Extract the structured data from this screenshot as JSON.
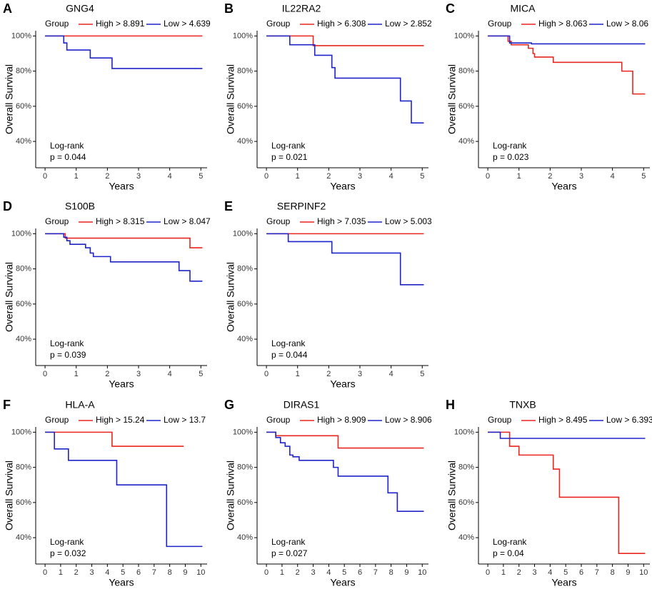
{
  "chart_data": [
    {
      "type": "line",
      "label": "A",
      "title": "GNG4",
      "legend_title": "Group",
      "xlabel": "Years",
      "ylabel": "Overall Survival",
      "annotation": "Log-rank",
      "p_value": "p = 0.044",
      "xlim": [
        -0.3,
        5.2
      ],
      "xticks": [
        0,
        1,
        2,
        3,
        4,
        5
      ],
      "ylim": [
        25,
        103
      ],
      "yticks": [
        {
          "value": 40,
          "label": "40%"
        },
        {
          "value": 60,
          "label": "60%"
        },
        {
          "value": 80,
          "label": "80%"
        },
        {
          "value": 100,
          "label": "100%"
        }
      ],
      "series": [
        {
          "name": "High > 8.891",
          "color": "#e8251f",
          "x": [
            0,
            5.05
          ],
          "values": [
            100,
            100
          ]
        },
        {
          "name": "Low > 4.639",
          "color": "#1f24c8",
          "x": [
            0,
            0.6,
            0.7,
            1.45,
            2.15,
            5.05
          ],
          "values": [
            100,
            96,
            92,
            87.5,
            81.5,
            81.5
          ]
        }
      ]
    },
    {
      "type": "line",
      "label": "B",
      "title": "IL22RA2",
      "legend_title": "Group",
      "xlabel": "Years",
      "ylabel": "Overall Survival",
      "annotation": "Log-rank",
      "p_value": "p = 0.021",
      "xlim": [
        -0.3,
        5.2
      ],
      "xticks": [
        0,
        1,
        2,
        3,
        4,
        5
      ],
      "ylim": [
        25,
        103
      ],
      "yticks": [
        {
          "value": 40,
          "label": "40%"
        },
        {
          "value": 60,
          "label": "60%"
        },
        {
          "value": 80,
          "label": "80%"
        },
        {
          "value": 100,
          "label": "100%"
        }
      ],
      "series": [
        {
          "name": "High > 6.308",
          "color": "#e8251f",
          "x": [
            0,
            1.5,
            5.05
          ],
          "values": [
            100,
            94.5,
            94.5
          ]
        },
        {
          "name": "Low > 2.852",
          "color": "#1f24c8",
          "x": [
            0,
            0.75,
            1.55,
            2.1,
            2.2,
            4.3,
            4.65,
            5.05
          ],
          "values": [
            100,
            95,
            89,
            82,
            76,
            63,
            50.5,
            50.5
          ]
        }
      ]
    },
    {
      "type": "line",
      "label": "C",
      "title": "MICA",
      "legend_title": "Group",
      "xlabel": "Years",
      "ylabel": "Overall Survival",
      "annotation": "Log-rank",
      "p_value": "p = 0.023",
      "xlim": [
        -0.3,
        5.2
      ],
      "xticks": [
        0,
        1,
        2,
        3,
        4,
        5
      ],
      "ylim": [
        25,
        103
      ],
      "yticks": [
        {
          "value": 40,
          "label": "40%"
        },
        {
          "value": 60,
          "label": "60%"
        },
        {
          "value": 80,
          "label": "80%"
        },
        {
          "value": 100,
          "label": "100%"
        }
      ],
      "series": [
        {
          "name": "High > 8.063",
          "color": "#e8251f",
          "x": [
            0,
            0.65,
            0.75,
            1.3,
            1.45,
            1.5,
            2.1,
            4.3,
            4.65,
            5.05
          ],
          "values": [
            100,
            97,
            95,
            93,
            90,
            88,
            85,
            80,
            67,
            67
          ]
        },
        {
          "name": "Low > 8.06",
          "color": "#1f24c8",
          "x": [
            0,
            0.7,
            1.4,
            5.05
          ],
          "values": [
            100,
            96,
            95.5,
            95.5
          ]
        }
      ]
    },
    {
      "type": "line",
      "label": "D",
      "title": "S100B",
      "legend_title": "Group",
      "xlabel": "Years",
      "ylabel": "Overall Survival",
      "annotation": "Log-rank",
      "p_value": "p = 0.039",
      "xlim": [
        -0.3,
        5.2
      ],
      "xticks": [
        0,
        1,
        2,
        3,
        4,
        5
      ],
      "ylim": [
        25,
        103
      ],
      "yticks": [
        {
          "value": 40,
          "label": "40%"
        },
        {
          "value": 60,
          "label": "60%"
        },
        {
          "value": 80,
          "label": "80%"
        },
        {
          "value": 100,
          "label": "100%"
        }
      ],
      "series": [
        {
          "name": "High > 8.315",
          "color": "#e8251f",
          "x": [
            0,
            0.65,
            4.65,
            5.05
          ],
          "values": [
            100,
            97.5,
            92,
            92
          ]
        },
        {
          "name": "Low > 8.047",
          "color": "#1f24c8",
          "x": [
            0,
            0.6,
            0.7,
            0.8,
            1.3,
            1.45,
            1.55,
            2.1,
            4.3,
            4.65,
            5.05
          ],
          "values": [
            100,
            98,
            96,
            94,
            92,
            89,
            87,
            84,
            79,
            73,
            73
          ]
        }
      ]
    },
    {
      "type": "line",
      "label": "E",
      "title": "SERPINF2",
      "legend_title": "Group",
      "xlabel": "Years",
      "ylabel": "Overall Survival",
      "annotation": "Log-rank",
      "p_value": "p = 0.044",
      "xlim": [
        -0.3,
        5.2
      ],
      "xticks": [
        0,
        1,
        2,
        3,
        4,
        5
      ],
      "ylim": [
        25,
        103
      ],
      "yticks": [
        {
          "value": 40,
          "label": "40%"
        },
        {
          "value": 60,
          "label": "60%"
        },
        {
          "value": 80,
          "label": "80%"
        },
        {
          "value": 100,
          "label": "100%"
        }
      ],
      "series": [
        {
          "name": "High > 7.035",
          "color": "#e8251f",
          "x": [
            0,
            5.05
          ],
          "values": [
            100,
            100
          ]
        },
        {
          "name": "Low > 5.003",
          "color": "#1f24c8",
          "x": [
            0,
            0.7,
            2.1,
            4.3,
            5.05
          ],
          "values": [
            100,
            95.5,
            89,
            71,
            71
          ]
        }
      ]
    },
    {
      "type": "line",
      "label": "F",
      "title": "HLA-A",
      "legend_title": "Group",
      "xlabel": "Years",
      "ylabel": "Overall Survival",
      "annotation": "Log-rank",
      "p_value": "p = 0.032",
      "xlim": [
        -0.6,
        10.4
      ],
      "xticks": [
        0,
        1,
        2,
        3,
        4,
        5,
        6,
        7,
        8,
        9,
        10
      ],
      "ylim": [
        25,
        103
      ],
      "yticks": [
        {
          "value": 40,
          "label": "40%"
        },
        {
          "value": 60,
          "label": "60%"
        },
        {
          "value": 80,
          "label": "80%"
        },
        {
          "value": 100,
          "label": "100%"
        }
      ],
      "series": [
        {
          "name": "High > 15.24",
          "color": "#e8251f",
          "x": [
            0,
            4.3,
            8.9
          ],
          "values": [
            100,
            92,
            92
          ]
        },
        {
          "name": "Low > 13.7",
          "color": "#1f24c8",
          "x": [
            0,
            0.6,
            1.5,
            4.6,
            7.8,
            10.1
          ],
          "values": [
            100,
            90.5,
            84,
            70,
            35,
            35
          ]
        }
      ]
    },
    {
      "type": "line",
      "label": "G",
      "title": "DIRAS1",
      "legend_title": "Group",
      "xlabel": "Years",
      "ylabel": "Overall Survival",
      "annotation": "Log-rank",
      "p_value": "p = 0.027",
      "xlim": [
        -0.6,
        10.4
      ],
      "xticks": [
        0,
        1,
        2,
        3,
        4,
        5,
        6,
        7,
        8,
        9,
        10
      ],
      "ylim": [
        25,
        103
      ],
      "yticks": [
        {
          "value": 40,
          "label": "40%"
        },
        {
          "value": 60,
          "label": "60%"
        },
        {
          "value": 80,
          "label": "80%"
        },
        {
          "value": 100,
          "label": "100%"
        }
      ],
      "series": [
        {
          "name": "High > 8.909",
          "color": "#e8251f",
          "x": [
            0,
            0.6,
            4.6,
            10.1
          ],
          "values": [
            100,
            98,
            91,
            91
          ]
        },
        {
          "name": "Low > 8.906",
          "color": "#1f24c8",
          "x": [
            0,
            0.6,
            0.9,
            1.2,
            1.5,
            1.7,
            2.1,
            4.3,
            4.6,
            7.8,
            8.4,
            10.1
          ],
          "values": [
            100,
            97,
            94,
            92,
            87,
            86,
            84,
            80,
            75,
            65.5,
            55,
            55
          ]
        }
      ]
    },
    {
      "type": "line",
      "label": "H",
      "title": "TNXB",
      "legend_title": "Group",
      "xlabel": "Years",
      "ylabel": "Overall Survival",
      "annotation": "Log-rank",
      "p_value": "p = 0.04",
      "xlim": [
        -0.6,
        10.4
      ],
      "xticks": [
        0,
        1,
        2,
        3,
        4,
        5,
        6,
        7,
        8,
        9,
        10
      ],
      "ylim": [
        25,
        103
      ],
      "yticks": [
        {
          "value": 40,
          "label": "40%"
        },
        {
          "value": 60,
          "label": "60%"
        },
        {
          "value": 80,
          "label": "80%"
        },
        {
          "value": 100,
          "label": "100%"
        }
      ],
      "series": [
        {
          "name": "High > 8.495",
          "color": "#e8251f",
          "x": [
            0,
            1.4,
            2.0,
            4.2,
            4.6,
            8.4,
            10.1
          ],
          "values": [
            100,
            92,
            87,
            79,
            63,
            31,
            31
          ]
        },
        {
          "name": "Low > 6.393",
          "color": "#1f24c8",
          "x": [
            0,
            0.8,
            10.1
          ],
          "values": [
            100,
            96.5,
            96.5
          ]
        }
      ]
    }
  ]
}
